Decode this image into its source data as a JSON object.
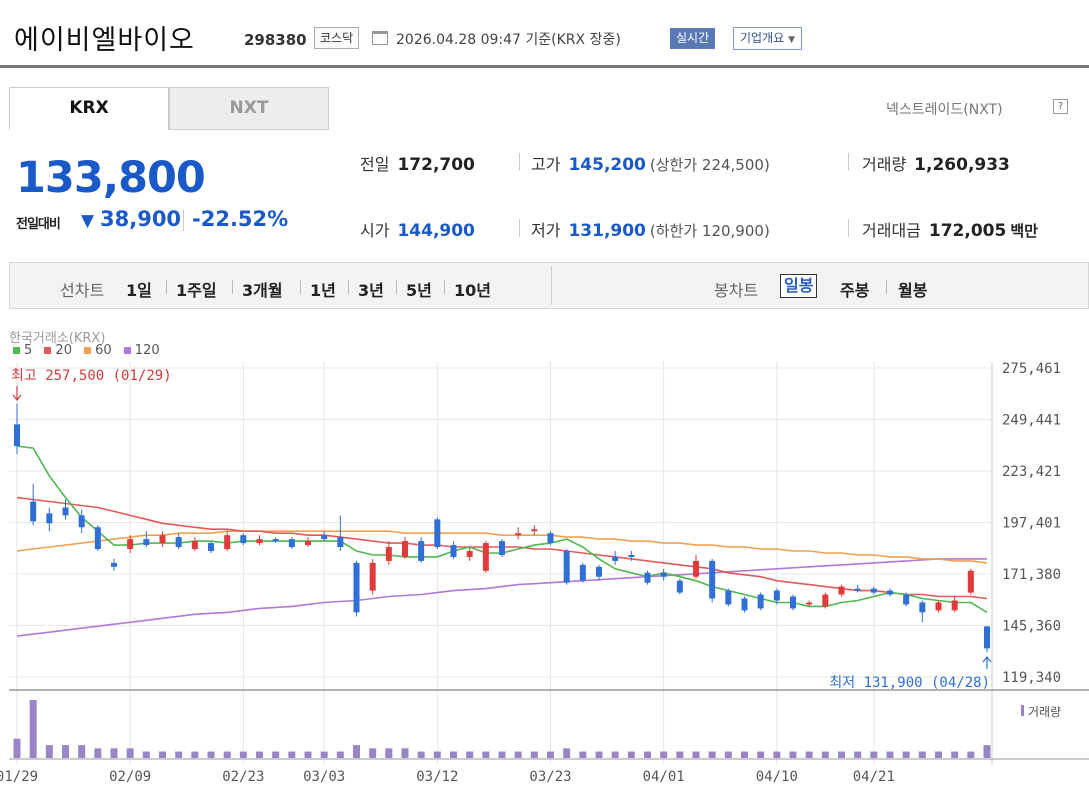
{
  "header": {
    "name": "에이비엘바이오",
    "code": "298380",
    "market": "코스닥",
    "timestamp": "2026.04.28 09:47  기준(KRX 장중)",
    "realtime_label": "실시간",
    "corp_label": "기업개요"
  },
  "tabs": {
    "krx": "KRX",
    "nxt": "NXT"
  },
  "nextrade_link": "넥스트레이드(NXT)",
  "help_icon": "?",
  "price": {
    "current": "133,800",
    "compare_label": "전일대비",
    "change_arrow": "▼",
    "change": "38,900",
    "change_pct": "-22.52%"
  },
  "stats": {
    "prev_label": "전일",
    "prev": "172,700",
    "high_label": "고가",
    "high": "145,200",
    "upper_limit": "(상한가 224,500)",
    "volume_label": "거래량",
    "volume": "1,260,933",
    "open_label": "시가",
    "open": "144,900",
    "low_label": "저가",
    "low": "131,900",
    "lower_limit": "(하한가 120,900)",
    "amount_label": "거래대금",
    "amount": "172,005",
    "amount_unit": "백만"
  },
  "periods": {
    "line_chart": "선차트",
    "items": [
      "1일",
      "1주일",
      "3개월",
      "1년",
      "3년",
      "5년",
      "10년"
    ],
    "candle_chart": "봉차트",
    "candle_items": [
      "일봉",
      "주봉",
      "월봉"
    ],
    "selected": "일봉"
  },
  "colors": {
    "up": "#e03a3a",
    "down": "#2f6fd6",
    "ma5": "#4fb84f",
    "ma20": "#e05a5a",
    "ma60": "#f0a050",
    "ma120": "#b07ad8",
    "volume": "#9a84c8",
    "accent": "#1a59c8"
  },
  "chart_data": {
    "type": "candlestick",
    "source": "한국거래소(KRX)",
    "legend": [
      {
        "name": "5",
        "color": "#4fb84f"
      },
      {
        "name": "20",
        "color": "#e05a5a"
      },
      {
        "name": "60",
        "color": "#f0a050"
      },
      {
        "name": "120",
        "color": "#b07ad8"
      }
    ],
    "y_ticks": [
      "275,461",
      "249,441",
      "223,421",
      "197,401",
      "171,380",
      "145,360",
      "119,340"
    ],
    "ylim": [
      119340,
      275461
    ],
    "x_ticks": [
      {
        "label": "01/29",
        "i": 0
      },
      {
        "label": "02/09",
        "i": 7
      },
      {
        "label": "02/23",
        "i": 14
      },
      {
        "label": "03/03",
        "i": 19
      },
      {
        "label": "03/12",
        "i": 26
      },
      {
        "label": "03/23",
        "i": 33
      },
      {
        "label": "04/01",
        "i": 40
      },
      {
        "label": "04/10",
        "i": 47
      },
      {
        "label": "04/21",
        "i": 53
      }
    ],
    "max_label": "최고 257,500 (01/29)",
    "min_label": "최저 131,900 (04/28)",
    "volume_label": "거래량",
    "candles": [
      [
        247000,
        236000,
        257500,
        232000
      ],
      [
        208000,
        198000,
        217000,
        196000
      ],
      [
        202000,
        197000,
        205000,
        193000
      ],
      [
        205000,
        201000,
        209000,
        199000
      ],
      [
        201000,
        195000,
        204000,
        192000
      ],
      [
        195000,
        184000,
        196000,
        183000
      ],
      [
        177000,
        175000,
        179000,
        173000
      ],
      [
        184000,
        189000,
        191000,
        182000
      ],
      [
        189000,
        186000,
        193000,
        185000
      ],
      [
        187000,
        191000,
        193000,
        185000
      ],
      [
        190000,
        185000,
        192000,
        184000
      ],
      [
        184000,
        188000,
        190000,
        183000
      ],
      [
        187000,
        183000,
        188000,
        182000
      ],
      [
        184000,
        191000,
        193000,
        183000
      ],
      [
        191000,
        187000,
        192000,
        186000
      ],
      [
        187000,
        189000,
        191000,
        186000
      ],
      [
        189000,
        188000,
        190000,
        187000
      ],
      [
        189000,
        185000,
        190000,
        184000
      ],
      [
        186000,
        188000,
        190000,
        185000
      ],
      [
        191000,
        189000,
        193000,
        188000
      ],
      [
        190000,
        185000,
        201000,
        183000
      ],
      [
        177000,
        152000,
        178000,
        150000
      ],
      [
        163000,
        177000,
        179000,
        161000
      ],
      [
        178000,
        185000,
        188000,
        176000
      ],
      [
        180000,
        188000,
        190000,
        179000
      ],
      [
        188000,
        178000,
        190000,
        177000
      ],
      [
        199000,
        185000,
        200000,
        184000
      ],
      [
        186000,
        180000,
        188000,
        179000
      ],
      [
        180000,
        183000,
        185000,
        178000
      ],
      [
        173000,
        187000,
        188000,
        172000
      ],
      [
        188000,
        181000,
        189000,
        180000
      ],
      [
        191000,
        192000,
        195000,
        189000
      ],
      [
        193000,
        194000,
        196000,
        191000
      ],
      [
        192000,
        187000,
        193000,
        186000
      ],
      [
        183000,
        167000,
        184000,
        166000
      ],
      [
        176000,
        168000,
        177000,
        167000
      ],
      [
        175000,
        170000,
        176000,
        168000
      ],
      [
        180000,
        178000,
        183000,
        176000
      ],
      [
        181000,
        180000,
        183000,
        178000
      ],
      [
        172000,
        167000,
        173000,
        166000
      ],
      [
        172000,
        170000,
        174000,
        168000
      ],
      [
        168000,
        162000,
        169000,
        161000
      ],
      [
        170000,
        178000,
        181000,
        169000
      ],
      [
        178000,
        159000,
        179000,
        157000
      ],
      [
        163000,
        156000,
        164000,
        155000
      ],
      [
        159000,
        153000,
        160000,
        152000
      ],
      [
        161000,
        154000,
        162000,
        153000
      ],
      [
        163000,
        158000,
        164000,
        156000
      ],
      [
        160000,
        154000,
        161000,
        153000
      ],
      [
        156000,
        157000,
        158000,
        155000
      ],
      [
        155000,
        161000,
        162000,
        154000
      ],
      [
        161000,
        165000,
        166000,
        160000
      ],
      [
        164000,
        163000,
        166000,
        162000
      ],
      [
        164000,
        162000,
        165000,
        161000
      ],
      [
        163000,
        161000,
        164000,
        160000
      ],
      [
        161000,
        156000,
        162000,
        155000
      ],
      [
        157000,
        152000,
        158000,
        147000
      ],
      [
        153000,
        157000,
        158000,
        152000
      ],
      [
        153000,
        158000,
        160000,
        152000
      ],
      [
        162000,
        173000,
        174000,
        161000
      ],
      [
        144900,
        133800,
        145200,
        131900
      ]
    ],
    "volumes": [
      3,
      9,
      2,
      2,
      2,
      1.5,
      1.5,
      1.5,
      1,
      1,
      1,
      1,
      1,
      1,
      1,
      1,
      1,
      1,
      1,
      1,
      1,
      2,
      1.5,
      1.5,
      1.5,
      1,
      1,
      1,
      1,
      1,
      1,
      1,
      1,
      1,
      1.5,
      1,
      1,
      1,
      1,
      1,
      1,
      1,
      1,
      1,
      1,
      1,
      1,
      1,
      1,
      1,
      1,
      1,
      1,
      1,
      1,
      1,
      1,
      1,
      1,
      1,
      2
    ],
    "ma5": [
      236000,
      235000,
      221000,
      210000,
      200000,
      193000,
      186000,
      186000,
      187000,
      187000,
      187000,
      188000,
      188000,
      187000,
      188000,
      188000,
      188000,
      188000,
      188000,
      188000,
      188000,
      183000,
      181000,
      181000,
      180000,
      180000,
      180000,
      183000,
      185000,
      182000,
      182000,
      184000,
      186000,
      187000,
      189000,
      185000,
      179000,
      174000,
      172000,
      170000,
      172000,
      170000,
      168000,
      165000,
      163000,
      161000,
      159000,
      157000,
      157000,
      155000,
      155000,
      157000,
      158000,
      160000,
      162000,
      161000,
      159000,
      158000,
      157000,
      157000,
      152000
    ],
    "ma20": [
      210000,
      209000,
      208000,
      207000,
      206000,
      205000,
      203000,
      201000,
      199000,
      197000,
      196000,
      195000,
      194000,
      194000,
      193000,
      193000,
      192000,
      192000,
      191000,
      191000,
      190000,
      189000,
      188000,
      187000,
      187000,
      186000,
      186000,
      185000,
      185000,
      185000,
      185000,
      185000,
      184000,
      184000,
      183000,
      182000,
      181000,
      180000,
      179000,
      178000,
      177000,
      176000,
      175000,
      174000,
      172000,
      171000,
      170000,
      168000,
      167000,
      166000,
      165000,
      164000,
      163000,
      163000,
      162000,
      161000,
      161000,
      160000,
      160000,
      160000,
      159000
    ],
    "ma60": [
      183000,
      184000,
      185000,
      186000,
      187000,
      188000,
      189000,
      190000,
      191000,
      191000,
      192000,
      192000,
      192000,
      193000,
      193000,
      193000,
      193000,
      193000,
      193000,
      193000,
      193000,
      193000,
      193000,
      193000,
      192000,
      192000,
      192000,
      192000,
      192000,
      192000,
      191000,
      191000,
      191000,
      191000,
      190000,
      190000,
      189000,
      189000,
      188000,
      188000,
      187000,
      187000,
      186000,
      186000,
      185000,
      185000,
      184000,
      184000,
      183000,
      183000,
      182000,
      182000,
      181000,
      181000,
      180000,
      180000,
      179000,
      179000,
      178000,
      178000,
      177000
    ],
    "ma120": [
      140000,
      141000,
      142000,
      143000,
      144000,
      145000,
      146000,
      147000,
      148000,
      149000,
      150000,
      151000,
      151500,
      152000,
      153000,
      154000,
      154500,
      155000,
      156000,
      157000,
      157500,
      158000,
      159000,
      160000,
      160500,
      161000,
      162000,
      163000,
      163500,
      164000,
      165000,
      166000,
      166500,
      167000,
      167500,
      168000,
      168500,
      169000,
      169500,
      170000,
      170500,
      171000,
      171500,
      172000,
      172500,
      173000,
      173500,
      174000,
      174500,
      175000,
      175500,
      176000,
      176500,
      177000,
      177500,
      178000,
      178500,
      179000,
      179000,
      179000,
      179000
    ]
  }
}
